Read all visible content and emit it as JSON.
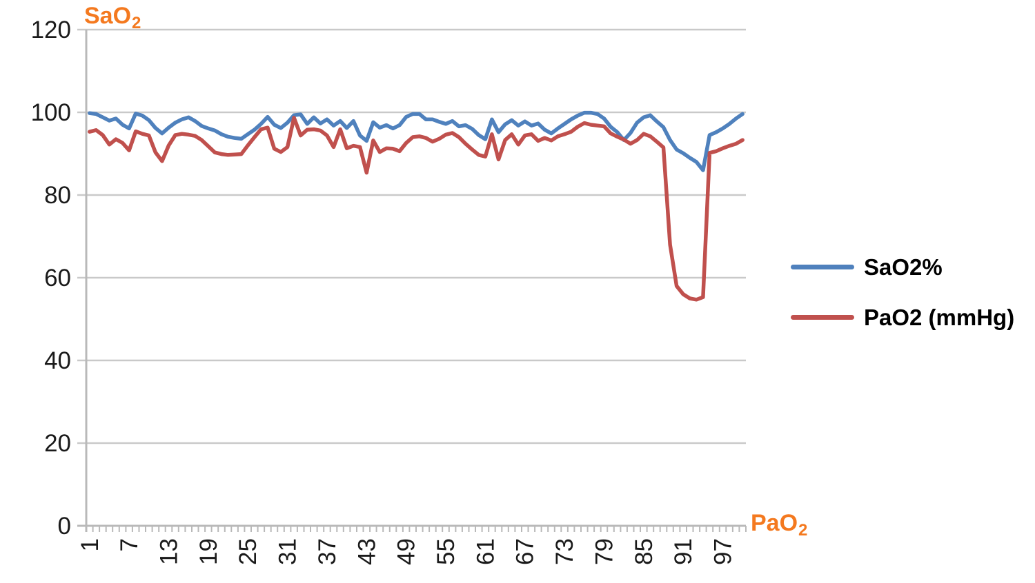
{
  "chart_data": {
    "type": "line",
    "title": "",
    "x_count": 100,
    "x_tick_labels": [
      1,
      7,
      13,
      19,
      25,
      31,
      37,
      43,
      49,
      55,
      61,
      67,
      73,
      79,
      85,
      91,
      97
    ],
    "ylim": [
      0,
      120
    ],
    "y_ticks": [
      0,
      20,
      40,
      60,
      80,
      100,
      120
    ],
    "grid": "horizontal-major",
    "legend_position": "right-middle",
    "y_axis_title": {
      "base": "SaO",
      "sub": "2"
    },
    "x_axis_title": {
      "base": "PaO",
      "sub": "2"
    },
    "series": [
      {
        "name": "SaO2%",
        "color": "#4f81bd",
        "values": [
          99.8,
          99.6,
          98.8,
          98.0,
          98.5,
          97.0,
          96.1,
          99.7,
          99.2,
          98.1,
          96.2,
          94.9,
          96.3,
          97.5,
          98.3,
          98.8,
          97.9,
          96.7,
          96.1,
          95.6,
          94.7,
          94.1,
          93.8,
          93.6,
          94.7,
          95.8,
          97.2,
          98.9,
          97.0,
          96.2,
          97.5,
          99.3,
          99.5,
          97.2,
          98.8,
          97.3,
          98.3,
          96.8,
          97.9,
          96.2,
          97.9,
          94.4,
          93.1,
          97.6,
          96.3,
          96.9,
          96.1,
          96.9,
          98.9,
          99.6,
          99.6,
          98.3,
          98.3,
          97.7,
          97.2,
          97.9,
          96.6,
          96.9,
          96.0,
          94.5,
          93.5,
          98.3,
          95.2,
          97.1,
          98.1,
          96.8,
          97.8,
          96.8,
          97.3,
          95.8,
          94.9,
          96.1,
          97.2,
          98.3,
          99.2,
          99.9,
          99.9,
          99.6,
          98.5,
          96.5,
          95.2,
          93.3,
          95.0,
          97.5,
          98.8,
          99.3,
          97.8,
          96.4,
          93.3,
          91.0,
          90.1,
          89.0,
          88.0,
          86.0,
          94.5,
          95.2,
          96.1,
          97.2,
          98.5,
          99.6
        ]
      },
      {
        "name": "PaO2 (mmHg)",
        "color": "#c0504d",
        "values": [
          95.3,
          95.7,
          94.5,
          92.2,
          93.5,
          92.6,
          90.8,
          95.4,
          94.8,
          94.4,
          90.3,
          88.2,
          92.0,
          94.5,
          94.8,
          94.6,
          94.3,
          93.3,
          91.8,
          90.3,
          89.9,
          89.7,
          89.8,
          89.9,
          92.0,
          94.0,
          95.9,
          96.3,
          91.2,
          90.4,
          91.6,
          98.7,
          94.4,
          95.8,
          95.9,
          95.6,
          94.4,
          91.6,
          95.9,
          91.3,
          91.9,
          91.6,
          85.4,
          93.2,
          90.4,
          91.3,
          91.2,
          90.6,
          92.6,
          94.0,
          94.2,
          93.8,
          92.9,
          93.6,
          94.6,
          95.0,
          94.0,
          92.4,
          91.0,
          89.7,
          89.3,
          94.7,
          88.6,
          93.3,
          94.7,
          92.2,
          94.4,
          94.7,
          93.1,
          93.8,
          93.2,
          94.2,
          94.7,
          95.3,
          96.5,
          97.4,
          97.0,
          96.8,
          96.6,
          94.9,
          94.1,
          93.4,
          92.4,
          93.3,
          94.8,
          94.2,
          92.9,
          91.5,
          68.0,
          58.0,
          56.0,
          55.0,
          54.7,
          55.3,
          90.2,
          90.6,
          91.3,
          91.9,
          92.4,
          93.3
        ]
      }
    ]
  },
  "colors": {
    "axis_titles": "#f4791f",
    "grid": "#c9c9c9",
    "axis": "#b9b9b9",
    "tick_labels": "#1a1a1a",
    "background": "#ffffff"
  }
}
